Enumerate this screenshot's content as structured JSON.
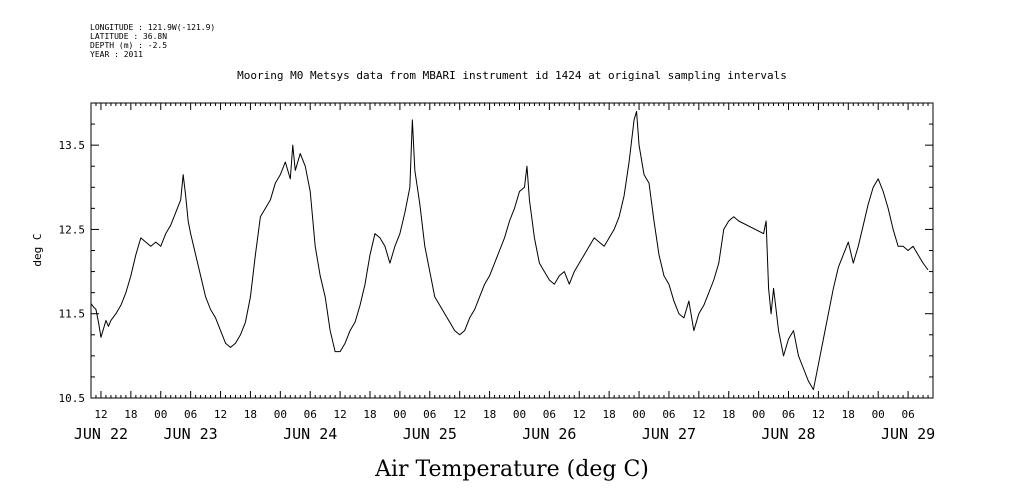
{
  "header": {
    "lines": [
      "LONGITUDE : 121.9W(-121.9)",
      "LATITUDE : 36.8N",
      "DEPTH (m) : -2.5",
      "YEAR : 2011"
    ]
  },
  "chart_data": {
    "type": "line",
    "title": "Mooring M0 Metsys data from MBARI instrument id 1424 at original sampling intervals",
    "xlabel": "Air Temperature (deg C)",
    "ylabel": "deg C",
    "ylim": [
      10.5,
      14.0
    ],
    "yticks": [
      10.5,
      11.5,
      12.5,
      13.5
    ],
    "xlim_hours": [
      -14,
      155
    ],
    "hour_ticks": [
      {
        "h": -12,
        "label": "12"
      },
      {
        "h": -6,
        "label": "18"
      },
      {
        "h": 0,
        "label": "00"
      },
      {
        "h": 6,
        "label": "06"
      },
      {
        "h": 12,
        "label": "12"
      },
      {
        "h": 18,
        "label": "18"
      },
      {
        "h": 24,
        "label": "00"
      },
      {
        "h": 30,
        "label": "06"
      },
      {
        "h": 36,
        "label": "12"
      },
      {
        "h": 42,
        "label": "18"
      },
      {
        "h": 48,
        "label": "00"
      },
      {
        "h": 54,
        "label": "06"
      },
      {
        "h": 60,
        "label": "12"
      },
      {
        "h": 66,
        "label": "18"
      },
      {
        "h": 72,
        "label": "00"
      },
      {
        "h": 78,
        "label": "06"
      },
      {
        "h": 84,
        "label": "12"
      },
      {
        "h": 90,
        "label": "18"
      },
      {
        "h": 96,
        "label": "00"
      },
      {
        "h": 102,
        "label": "06"
      },
      {
        "h": 108,
        "label": "12"
      },
      {
        "h": 114,
        "label": "18"
      },
      {
        "h": 120,
        "label": "00"
      },
      {
        "h": 126,
        "label": "06"
      },
      {
        "h": 132,
        "label": "12"
      },
      {
        "h": 138,
        "label": "18"
      },
      {
        "h": 144,
        "label": "00"
      },
      {
        "h": 150,
        "label": "06"
      }
    ],
    "day_labels": [
      {
        "h": -12,
        "label": "JUN 22"
      },
      {
        "h": 6,
        "label": "JUN 23"
      },
      {
        "h": 30,
        "label": "JUN 24"
      },
      {
        "h": 54,
        "label": "JUN 25"
      },
      {
        "h": 78,
        "label": "JUN 26"
      },
      {
        "h": 102,
        "label": "JUN 27"
      },
      {
        "h": 126,
        "label": "JUN 28"
      },
      {
        "h": 150,
        "label": "JUN 29"
      }
    ],
    "series": [
      {
        "points": [
          [
            -14,
            11.62
          ],
          [
            -13.5,
            11.58
          ],
          [
            -13,
            11.55
          ],
          [
            -12.5,
            11.4
          ],
          [
            -12,
            11.22
          ],
          [
            -11.5,
            11.32
          ],
          [
            -11,
            11.42
          ],
          [
            -10.5,
            11.35
          ],
          [
            -10,
            11.42
          ],
          [
            -9,
            11.5
          ],
          [
            -8,
            11.6
          ],
          [
            -7,
            11.75
          ],
          [
            -6,
            11.95
          ],
          [
            -5,
            12.2
          ],
          [
            -4,
            12.4
          ],
          [
            -3,
            12.35
          ],
          [
            -2,
            12.3
          ],
          [
            -1,
            12.35
          ],
          [
            0,
            12.3
          ],
          [
            1,
            12.45
          ],
          [
            2,
            12.55
          ],
          [
            3,
            12.7
          ],
          [
            4,
            12.85
          ],
          [
            4.5,
            13.15
          ],
          [
            5,
            12.9
          ],
          [
            5.5,
            12.6
          ],
          [
            6,
            12.45
          ],
          [
            7,
            12.2
          ],
          [
            8,
            11.95
          ],
          [
            9,
            11.7
          ],
          [
            10,
            11.55
          ],
          [
            11,
            11.45
          ],
          [
            12,
            11.3
          ],
          [
            13,
            11.15
          ],
          [
            14,
            11.1
          ],
          [
            15,
            11.15
          ],
          [
            16,
            11.25
          ],
          [
            17,
            11.4
          ],
          [
            18,
            11.7
          ],
          [
            19,
            12.2
          ],
          [
            20,
            12.65
          ],
          [
            21,
            12.75
          ],
          [
            22,
            12.85
          ],
          [
            23,
            13.05
          ],
          [
            24,
            13.15
          ],
          [
            25,
            13.3
          ],
          [
            26,
            13.1
          ],
          [
            26.5,
            13.5
          ],
          [
            27,
            13.2
          ],
          [
            28,
            13.4
          ],
          [
            29,
            13.25
          ],
          [
            30,
            12.95
          ],
          [
            31,
            12.3
          ],
          [
            32,
            11.95
          ],
          [
            33,
            11.7
          ],
          [
            34,
            11.3
          ],
          [
            35,
            11.05
          ],
          [
            36,
            11.05
          ],
          [
            37,
            11.15
          ],
          [
            38,
            11.3
          ],
          [
            39,
            11.4
          ],
          [
            40,
            11.6
          ],
          [
            41,
            11.85
          ],
          [
            42,
            12.2
          ],
          [
            43,
            12.45
          ],
          [
            44,
            12.4
          ],
          [
            45,
            12.3
          ],
          [
            46,
            12.1
          ],
          [
            47,
            12.3
          ],
          [
            48,
            12.45
          ],
          [
            49,
            12.7
          ],
          [
            50,
            13.0
          ],
          [
            50.5,
            13.8
          ],
          [
            51,
            13.2
          ],
          [
            52,
            12.8
          ],
          [
            53,
            12.3
          ],
          [
            54,
            12.0
          ],
          [
            55,
            11.7
          ],
          [
            56,
            11.6
          ],
          [
            57,
            11.5
          ],
          [
            58,
            11.4
          ],
          [
            59,
            11.3
          ],
          [
            60,
            11.25
          ],
          [
            61,
            11.3
          ],
          [
            62,
            11.45
          ],
          [
            63,
            11.55
          ],
          [
            64,
            11.7
          ],
          [
            65,
            11.85
          ],
          [
            66,
            11.95
          ],
          [
            67,
            12.1
          ],
          [
            68,
            12.25
          ],
          [
            69,
            12.4
          ],
          [
            70,
            12.6
          ],
          [
            71,
            12.75
          ],
          [
            72,
            12.95
          ],
          [
            73,
            13.0
          ],
          [
            73.5,
            13.25
          ],
          [
            74,
            12.85
          ],
          [
            75,
            12.4
          ],
          [
            76,
            12.1
          ],
          [
            77,
            12.0
          ],
          [
            78,
            11.9
          ],
          [
            79,
            11.85
          ],
          [
            80,
            11.95
          ],
          [
            81,
            12.0
          ],
          [
            82,
            11.85
          ],
          [
            83,
            12.0
          ],
          [
            84,
            12.1
          ],
          [
            85,
            12.2
          ],
          [
            86,
            12.3
          ],
          [
            87,
            12.4
          ],
          [
            88,
            12.35
          ],
          [
            89,
            12.3
          ],
          [
            90,
            12.4
          ],
          [
            91,
            12.5
          ],
          [
            92,
            12.65
          ],
          [
            93,
            12.9
          ],
          [
            94,
            13.3
          ],
          [
            95,
            13.8
          ],
          [
            95.5,
            13.9
          ],
          [
            96,
            13.5
          ],
          [
            97,
            13.15
          ],
          [
            98,
            13.05
          ],
          [
            99,
            12.6
          ],
          [
            100,
            12.2
          ],
          [
            101,
            11.95
          ],
          [
            102,
            11.85
          ],
          [
            103,
            11.65
          ],
          [
            104,
            11.5
          ],
          [
            105,
            11.45
          ],
          [
            106,
            11.65
          ],
          [
            107,
            11.3
          ],
          [
            108,
            11.5
          ],
          [
            109,
            11.6
          ],
          [
            110,
            11.75
          ],
          [
            111,
            11.9
          ],
          [
            112,
            12.1
          ],
          [
            113,
            12.5
          ],
          [
            114,
            12.6
          ],
          [
            115,
            12.65
          ],
          [
            116,
            12.6
          ],
          [
            121,
            12.45
          ],
          [
            121.5,
            12.6
          ],
          [
            122,
            11.8
          ],
          [
            122.5,
            11.5
          ],
          [
            123,
            11.8
          ],
          [
            124,
            11.3
          ],
          [
            125,
            11.0
          ],
          [
            126,
            11.2
          ],
          [
            127,
            11.3
          ],
          [
            128,
            11.0
          ],
          [
            129,
            10.85
          ],
          [
            130,
            10.7
          ],
          [
            131,
            10.6
          ],
          [
            132,
            10.9
          ],
          [
            133,
            11.2
          ],
          [
            134,
            11.5
          ],
          [
            135,
            11.8
          ],
          [
            136,
            12.05
          ],
          [
            137,
            12.2
          ],
          [
            138,
            12.35
          ],
          [
            139,
            12.1
          ],
          [
            140,
            12.3
          ],
          [
            141,
            12.55
          ],
          [
            142,
            12.8
          ],
          [
            143,
            13.0
          ],
          [
            144,
            13.1
          ],
          [
            145,
            12.95
          ],
          [
            146,
            12.75
          ],
          [
            147,
            12.5
          ],
          [
            148,
            12.3
          ],
          [
            149,
            12.3
          ],
          [
            150,
            12.25
          ],
          [
            151,
            12.3
          ],
          [
            152,
            12.2
          ],
          [
            153,
            12.1
          ],
          [
            154,
            12.02
          ]
        ]
      }
    ]
  }
}
